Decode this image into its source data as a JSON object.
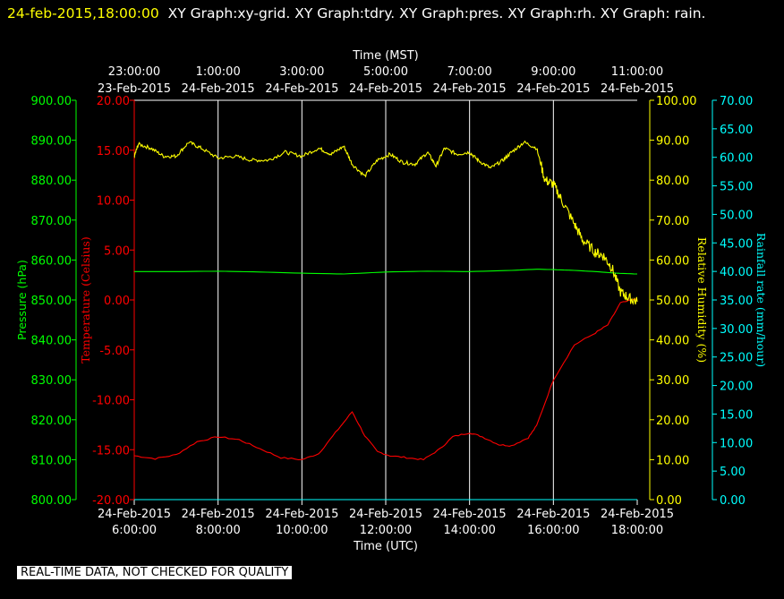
{
  "header": {
    "timestamp": "24-feb-2015,18:00:00",
    "graphs": "XY Graph:xy-grid.  XY Graph:tdry.  XY Graph:pres.  XY Graph:rh.  XY Graph: rain."
  },
  "footer": {
    "note": "REAL-TIME DATA, NOT CHECKED FOR QUALITY"
  },
  "chart_data": {
    "type": "line",
    "grid": "vertical",
    "x_top": {
      "label": "Time (MST)",
      "ticks": [
        {
          "time": "23:00:00",
          "date": "23-Feb-2015"
        },
        {
          "time": "1:00:00",
          "date": "24-Feb-2015"
        },
        {
          "time": "3:00:00",
          "date": "24-Feb-2015"
        },
        {
          "time": "5:00:00",
          "date": "24-Feb-2015"
        },
        {
          "time": "7:00:00",
          "date": "24-Feb-2015"
        },
        {
          "time": "9:00:00",
          "date": "24-Feb-2015"
        },
        {
          "time": "11:00:00",
          "date": "24-Feb-2015"
        }
      ]
    },
    "x_bottom": {
      "label": "Time (UTC)",
      "range_hours": [
        6,
        18
      ],
      "ticks": [
        {
          "date": "24-Feb-2015",
          "time": "6:00:00"
        },
        {
          "date": "24-Feb-2015",
          "time": "8:00:00"
        },
        {
          "date": "24-Feb-2015",
          "time": "10:00:00"
        },
        {
          "date": "24-Feb-2015",
          "time": "12:00:00"
        },
        {
          "date": "24-Feb-2015",
          "time": "14:00:00"
        },
        {
          "date": "24-Feb-2015",
          "time": "16:00:00"
        },
        {
          "date": "24-Feb-2015",
          "time": "18:00:00"
        }
      ]
    },
    "axes": {
      "pressure": {
        "label": "Pressure (hPa)",
        "color": "#00ff00",
        "range": [
          800,
          900
        ],
        "ticks": [
          "900.00",
          "890.00",
          "880.00",
          "870.00",
          "860.00",
          "850.00",
          "840.00",
          "830.00",
          "820.00",
          "810.00",
          "800.00"
        ]
      },
      "temperature": {
        "label": "Temperature (Celsius)",
        "color": "#ff0000",
        "range": [
          -20,
          20
        ],
        "ticks": [
          "20.00",
          "15.00",
          "10.00",
          "5.00",
          "0.00",
          "-5.00",
          "-10.00",
          "-15.00",
          "-20.00"
        ]
      },
      "humidity": {
        "label": "Relative Humidity (%)",
        "color": "#ffff00",
        "range": [
          0,
          100
        ],
        "ticks": [
          "100.00",
          "90.00",
          "80.00",
          "70.00",
          "60.00",
          "50.00",
          "40.00",
          "30.00",
          "20.00",
          "10.00",
          "0.00"
        ]
      },
      "rain": {
        "label": "Rainfall rate (mm/hour)",
        "color": "#00ffff",
        "range": [
          0,
          70
        ],
        "ticks": [
          "70.00",
          "65.00",
          "60.00",
          "55.00",
          "50.00",
          "45.00",
          "40.00",
          "35.00",
          "30.00",
          "25.00",
          "20.00",
          "15.00",
          "10.00",
          "5.00",
          "0.00"
        ]
      }
    },
    "series": [
      {
        "axis": "pressure",
        "color": "#00ff00",
        "x": [
          6.0,
          7.0,
          8.0,
          9.0,
          10.0,
          11.0,
          12.0,
          13.0,
          14.0,
          15.0,
          15.6,
          16.0,
          16.5,
          17.0,
          17.5,
          18.0
        ],
        "y": [
          857.1,
          857.1,
          857.2,
          857.0,
          856.7,
          856.5,
          857.0,
          857.2,
          857.1,
          857.4,
          857.7,
          857.6,
          857.4,
          857.1,
          856.7,
          856.5
        ]
      },
      {
        "axis": "temperature",
        "color": "#ff0000",
        "x": [
          6.0,
          6.5,
          7.0,
          7.5,
          8.0,
          8.5,
          9.0,
          9.5,
          10.0,
          10.4,
          10.8,
          11.2,
          11.5,
          11.8,
          12.1,
          12.5,
          12.9,
          13.3,
          13.6,
          14.0,
          14.3,
          14.7,
          15.0,
          15.4,
          15.6,
          16.0,
          16.5,
          17.0,
          17.3,
          17.6,
          18.0
        ],
        "y": [
          -15.6,
          -15.9,
          -15.5,
          -14.2,
          -13.7,
          -14.0,
          -14.9,
          -15.8,
          -16.0,
          -15.4,
          -13.3,
          -11.2,
          -13.6,
          -15.2,
          -15.6,
          -15.8,
          -16.0,
          -14.9,
          -13.7,
          -13.3,
          -13.7,
          -14.5,
          -14.6,
          -13.8,
          -12.6,
          -8.0,
          -4.5,
          -3.3,
          -2.5,
          -0.3,
          0.1
        ]
      },
      {
        "axis": "humidity",
        "color": "#ffff00",
        "x": [
          6.0,
          6.1,
          6.4,
          6.7,
          7.0,
          7.3,
          7.6,
          8.0,
          8.4,
          8.8,
          9.2,
          9.6,
          10.0,
          10.4,
          10.7,
          11.0,
          11.2,
          11.5,
          11.8,
          12.1,
          12.4,
          12.7,
          13.0,
          13.2,
          13.4,
          13.7,
          14.0,
          14.2,
          14.5,
          14.8,
          15.0,
          15.3,
          15.6,
          15.8,
          16.0,
          16.2,
          16.5,
          16.7,
          17.0,
          17.2,
          17.4,
          17.6,
          17.8,
          18.0
        ],
        "y": [
          86.0,
          89.0,
          88.0,
          86.0,
          86.0,
          89.5,
          88.0,
          85.5,
          86.0,
          85.0,
          85.0,
          87.0,
          86.0,
          88.0,
          86.5,
          88.5,
          84.0,
          81.0,
          85.0,
          86.5,
          84.5,
          84.0,
          87.0,
          83.5,
          88.0,
          86.5,
          87.0,
          85.0,
          83.0,
          85.0,
          87.0,
          89.5,
          88.0,
          80.0,
          79.0,
          75.0,
          69.0,
          65.0,
          62.0,
          61.0,
          58.0,
          52.0,
          50.5,
          49.5
        ]
      },
      {
        "axis": "rain",
        "color": "#00ffff",
        "x": [
          6.0,
          18.0
        ],
        "y": [
          0.0,
          0.0
        ]
      }
    ]
  }
}
